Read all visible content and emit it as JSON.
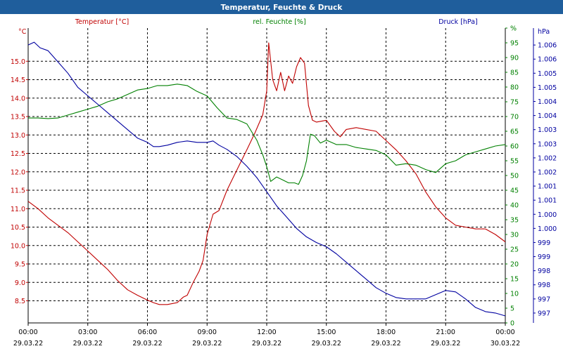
{
  "colors": {
    "title_bar": "#1f5e9c",
    "temperature": "#c00000",
    "humidity": "#008000",
    "pressure": "#0000a0",
    "grid": "#000000",
    "frame": "#000000"
  },
  "chart_data": {
    "type": "line",
    "title": "Temperatur, Feuchte & Druck",
    "grid": true,
    "x_ticks": [
      {
        "time": "00:00",
        "date": "29.03.22"
      },
      {
        "time": "03:00",
        "date": "29.03.22"
      },
      {
        "time": "06:00",
        "date": "29.03.22"
      },
      {
        "time": "09:00",
        "date": "29.03.22"
      },
      {
        "time": "12:00",
        "date": "29.03.22"
      },
      {
        "time": "15:00",
        "date": "29.03.22"
      },
      {
        "time": "18:00",
        "date": "29.03.22"
      },
      {
        "time": "21:00",
        "date": "29.03.22"
      },
      {
        "time": "00:00",
        "date": "30.03.22"
      }
    ],
    "xlim": [
      0,
      24
    ],
    "axes": {
      "temperature": {
        "label": "Temperatur [°C]",
        "unit": "°C",
        "ylim": [
          7.9,
          15.9
        ],
        "ticks": [
          "8.5",
          "9.0",
          "9.5",
          "10.0",
          "10.5",
          "11.0",
          "11.5",
          "12.0",
          "12.5",
          "13.0",
          "13.5",
          "14.0",
          "14.5",
          "15.0"
        ],
        "tick_values": [
          8.5,
          9.0,
          9.5,
          10.0,
          10.5,
          11.0,
          11.5,
          12.0,
          12.5,
          13.0,
          13.5,
          14.0,
          14.5,
          15.0
        ]
      },
      "humidity": {
        "label": "rel. Feuchte [%]",
        "unit": "%",
        "ylim": [
          0,
          100
        ],
        "ticks": [
          "0",
          "5",
          "10",
          "15",
          "20",
          "25",
          "30",
          "35",
          "40",
          "45",
          "50",
          "55",
          "60",
          "65",
          "70",
          "75",
          "80",
          "85",
          "90",
          "95",
          "%"
        ],
        "tick_values": [
          0,
          5,
          10,
          15,
          20,
          25,
          30,
          35,
          40,
          45,
          50,
          55,
          60,
          65,
          70,
          75,
          80,
          85,
          90,
          95,
          100
        ]
      },
      "pressure": {
        "label": "Druck [hPa]",
        "unit": "hPa",
        "ticks": [
          "997",
          "997",
          "998",
          "998",
          "999",
          "999",
          "1.000",
          "1.000",
          "1.001",
          "1.001",
          "1.002",
          "1.002",
          "1.003",
          "1.003",
          "1.004",
          "1.004",
          "1.005",
          "1.005",
          "1.006",
          "1.006"
        ],
        "tick_values": [
          996.8,
          997.3,
          997.8,
          998.3,
          998.8,
          999.3,
          999.8,
          1000.3,
          1000.8,
          1001.3,
          1001.8,
          1002.3,
          1002.8,
          1003.3,
          1003.8,
          1004.3,
          1004.8,
          1005.3,
          1005.8,
          1006.3
        ],
        "ylim": [
          996.45,
          1006.9
        ]
      }
    },
    "series": [
      {
        "name": "Temperatur [°C]",
        "axis": "temperature",
        "x": [
          0,
          0.5,
          1,
          1.5,
          2,
          2.5,
          3,
          3.5,
          4,
          4.5,
          5,
          5.5,
          6,
          6.3,
          6.6,
          7,
          7.5,
          7.8,
          8,
          8.3,
          8.6,
          8.8,
          9,
          9.3,
          9.6,
          10,
          10.5,
          11,
          11.4,
          11.8,
          12,
          12.1,
          12.3,
          12.5,
          12.7,
          12.9,
          13.1,
          13.3,
          13.5,
          13.7,
          13.9,
          14.1,
          14.3,
          14.5,
          15,
          15.4,
          15.7,
          16,
          16.5,
          17,
          17.5,
          18,
          18.5,
          19,
          19.5,
          20,
          20.5,
          21,
          21.5,
          22,
          22.5,
          23,
          23.5,
          24
        ],
        "y": [
          11.2,
          11.0,
          10.75,
          10.55,
          10.35,
          10.1,
          9.85,
          9.6,
          9.35,
          9.05,
          8.8,
          8.65,
          8.52,
          8.45,
          8.4,
          8.4,
          8.45,
          8.6,
          8.65,
          9.0,
          9.3,
          9.6,
          10.3,
          10.85,
          10.95,
          11.5,
          12.05,
          12.6,
          13.05,
          13.55,
          14.2,
          15.5,
          14.5,
          14.2,
          14.7,
          14.2,
          14.6,
          14.4,
          14.85,
          15.1,
          14.95,
          13.8,
          13.4,
          13.35,
          13.4,
          13.1,
          12.95,
          13.15,
          13.2,
          13.15,
          13.1,
          12.85,
          12.6,
          12.3,
          11.95,
          11.45,
          11.05,
          10.75,
          10.55,
          10.5,
          10.45,
          10.45,
          10.3,
          10.1
        ]
      },
      {
        "name": "rel. Feuchte [%]",
        "axis": "humidity",
        "x": [
          0,
          0.5,
          1,
          1.5,
          2,
          2.5,
          3,
          3.5,
          4,
          4.5,
          5,
          5.5,
          6,
          6.5,
          7,
          7.5,
          8,
          8.5,
          9,
          9.5,
          10,
          10.5,
          11,
          11.5,
          11.8,
          12,
          12.2,
          12.5,
          12.8,
          13.1,
          13.4,
          13.6,
          13.8,
          14,
          14.2,
          14.4,
          14.7,
          15,
          15.5,
          16,
          16.5,
          17,
          17.5,
          18,
          18.5,
          19,
          19.5,
          20,
          20.5,
          21,
          21.5,
          22,
          22.5,
          23,
          23.5,
          24
        ],
        "y": [
          69.5,
          69.5,
          69.3,
          69.5,
          70.5,
          71.5,
          72.5,
          73.5,
          75,
          76,
          77.5,
          79,
          79.5,
          80.5,
          80.5,
          81,
          80.5,
          78.5,
          77,
          73,
          69.5,
          69,
          67.5,
          62,
          57,
          53,
          48,
          49.5,
          48.5,
          47.5,
          47.5,
          47,
          50,
          55,
          64,
          63.5,
          61,
          62,
          60.5,
          60.5,
          59.5,
          59,
          58.5,
          57,
          53.5,
          54,
          53.5,
          52,
          51,
          54,
          55,
          57,
          58,
          59,
          60,
          60.5
        ]
      },
      {
        "name": "Druck [hPa]",
        "axis": "pressure",
        "x": [
          0,
          0.3,
          0.6,
          1,
          1.5,
          2,
          2.5,
          3,
          3.5,
          4,
          4.5,
          5,
          5.5,
          6,
          6.3,
          6.6,
          7,
          7.5,
          8,
          8.5,
          9,
          9.3,
          9.6,
          10,
          10.5,
          11,
          11.5,
          12,
          12.5,
          13,
          13.5,
          14,
          14.5,
          15,
          15.5,
          16,
          16.5,
          17,
          17.5,
          18,
          18.5,
          19,
          19.5,
          20,
          20.5,
          21,
          21.5,
          22,
          22.5,
          23,
          23.5,
          24
        ],
        "y": [
          1006.3,
          1006.4,
          1006.2,
          1006.1,
          1005.7,
          1005.3,
          1004.8,
          1004.5,
          1004.2,
          1003.9,
          1003.6,
          1003.3,
          1003.0,
          1002.85,
          1002.7,
          1002.7,
          1002.75,
          1002.85,
          1002.9,
          1002.85,
          1002.85,
          1002.9,
          1002.75,
          1002.6,
          1002.35,
          1002.0,
          1001.6,
          1001.1,
          1000.6,
          1000.2,
          999.8,
          999.5,
          999.3,
          999.15,
          998.9,
          998.6,
          998.3,
          998.0,
          997.7,
          997.5,
          997.35,
          997.3,
          997.3,
          997.3,
          997.45,
          997.6,
          997.55,
          997.3,
          997.0,
          996.85,
          996.8,
          996.7
        ]
      }
    ]
  }
}
